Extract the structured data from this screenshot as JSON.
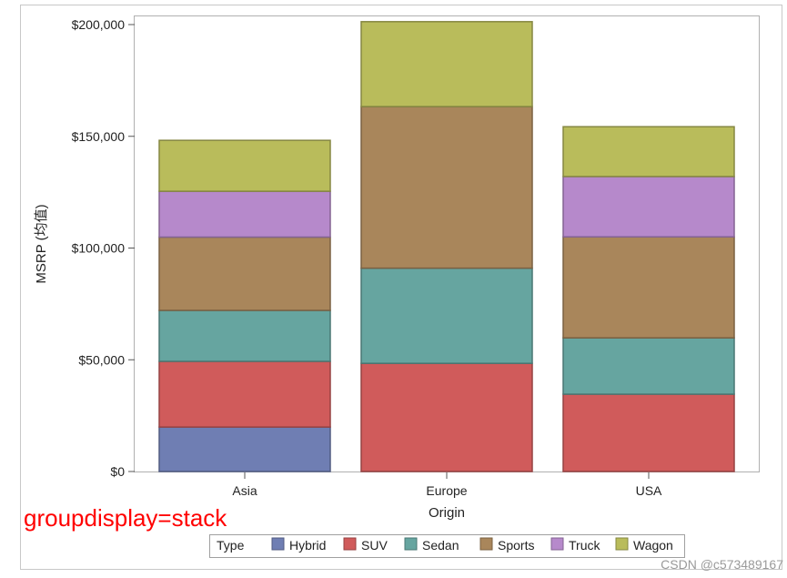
{
  "chart_data": {
    "type": "bar",
    "stacked": true,
    "categories": [
      "Asia",
      "Europe",
      "USA"
    ],
    "xlabel": "Origin",
    "ylabel": "MSRP (均值)",
    "ylim": [
      0,
      200000
    ],
    "yticks": [
      0,
      50000,
      100000,
      150000,
      200000
    ],
    "ytick_labels": [
      "$0",
      "$50,000",
      "$100,000",
      "$150,000",
      "$200,000"
    ],
    "legend_title": "Type",
    "legend_position": "bottom",
    "grid": false,
    "series": [
      {
        "name": "Hybrid",
        "color": "#6f7eb3",
        "values": [
          19900,
          0,
          0
        ]
      },
      {
        "name": "SUV",
        "color": "#d05b5b",
        "values": [
          29400,
          48400,
          34600
        ]
      },
      {
        "name": "Sedan",
        "color": "#66a5a0",
        "values": [
          22800,
          42600,
          25200
        ]
      },
      {
        "name": "Sports",
        "color": "#a9865b",
        "values": [
          32800,
          72300,
          45200
        ]
      },
      {
        "name": "Truck",
        "color": "#b689cb",
        "values": [
          20500,
          0,
          27000
        ]
      },
      {
        "name": "Wagon",
        "color": "#b9bc5b",
        "values": [
          22800,
          38000,
          22300
        ]
      }
    ]
  },
  "annotation": "groupdisplay=stack",
  "watermark": "CSDN @c573489167"
}
